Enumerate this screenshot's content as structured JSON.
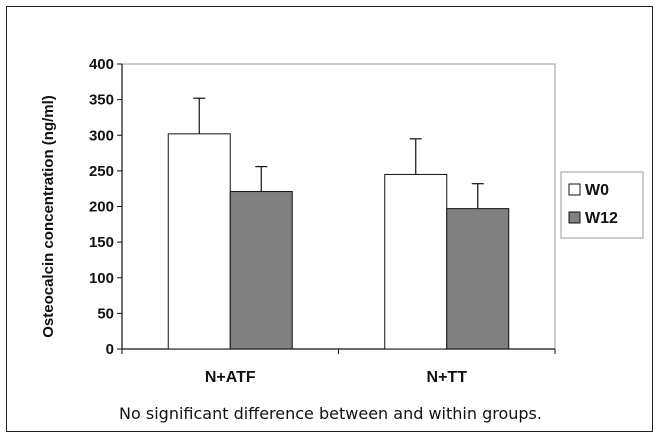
{
  "chart_data": {
    "type": "bar",
    "categories": [
      "N+ATF",
      "N+TT"
    ],
    "series": [
      {
        "name": "W0",
        "values": [
          302,
          245
        ],
        "error": [
          50,
          50
        ],
        "color": "#ffffff"
      },
      {
        "name": "W12",
        "values": [
          221,
          197
        ],
        "error": [
          35,
          35
        ],
        "color": "#808080"
      }
    ],
    "ylabel": "Osteocalcin concentration (ng/ml)",
    "xlabel": "",
    "title": "",
    "ylim": [
      0,
      400
    ],
    "yticks": [
      0,
      50,
      100,
      150,
      200,
      250,
      300,
      350,
      400
    ],
    "grid": false,
    "legend_position": "right"
  },
  "caption": "No significant difference between and within groups."
}
